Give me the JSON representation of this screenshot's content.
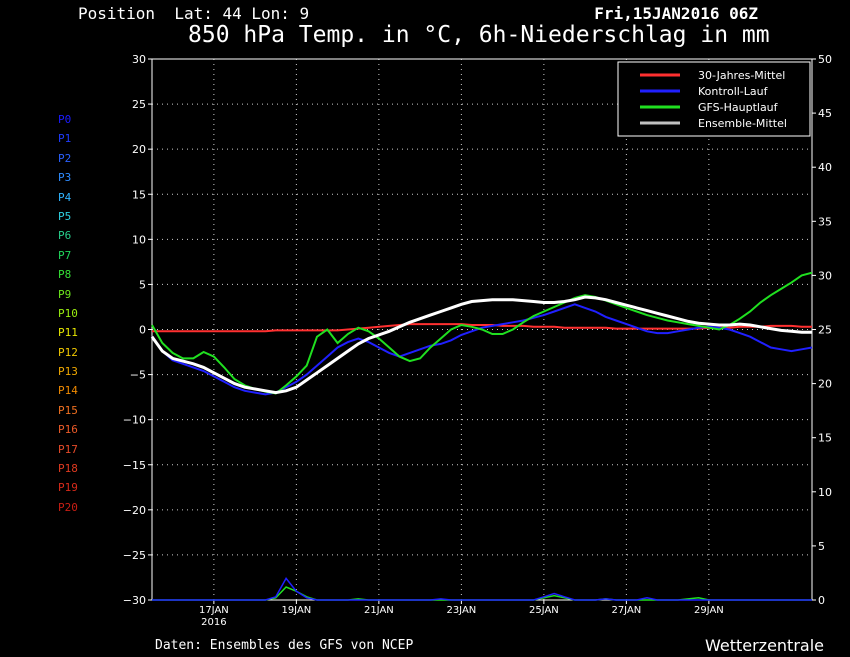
{
  "header": {
    "position": "Position  Lat: 44 Lon: 9",
    "datetime": "Fri,15JAN2016 06Z",
    "title": "850 hPa Temp. in °C, 6h-Niederschlag in mm"
  },
  "footer": {
    "source": "Daten: Ensembles des GFS von NCEP",
    "brand": "Wetterzentrale"
  },
  "members": [
    {
      "label": "P0",
      "color": "#1b1bff"
    },
    {
      "label": "P1",
      "color": "#1f3cff"
    },
    {
      "label": "P2",
      "color": "#2a60ff"
    },
    {
      "label": "P3",
      "color": "#2f8cff"
    },
    {
      "label": "P4",
      "color": "#2fb4ff"
    },
    {
      "label": "P5",
      "color": "#2ed0e0"
    },
    {
      "label": "P6",
      "color": "#27d08c"
    },
    {
      "label": "P7",
      "color": "#1fd65a"
    },
    {
      "label": "P8",
      "color": "#35e035"
    },
    {
      "label": "P9",
      "color": "#6ce81c"
    },
    {
      "label": "P10",
      "color": "#9aee10"
    },
    {
      "label": "P11",
      "color": "#e6e600"
    },
    {
      "label": "P12",
      "color": "#f0c800"
    },
    {
      "label": "P13",
      "color": "#f0a800"
    },
    {
      "label": "P14",
      "color": "#f08a00"
    },
    {
      "label": "P15",
      "color": "#f07020"
    },
    {
      "label": "P16",
      "color": "#ec5a28"
    },
    {
      "label": "P17",
      "color": "#e64a28"
    },
    {
      "label": "P18",
      "color": "#e03a20"
    },
    {
      "label": "P19",
      "color": "#d82a1a"
    },
    {
      "label": "P20",
      "color": "#c81e14"
    }
  ],
  "chart_data": {
    "type": "line",
    "x_ticks": [
      "17JAN",
      "19JAN",
      "21JAN",
      "23JAN",
      "25JAN",
      "27JAN",
      "29JAN"
    ],
    "x_sublabel": "2016",
    "y_left": {
      "min": -30,
      "max": 30,
      "step": 5,
      "unit": "°C"
    },
    "y_right": {
      "min": 0,
      "max": 50,
      "step": 5,
      "unit": "mm"
    },
    "x_steps": 64,
    "grid": true,
    "legend": {
      "placement": "top-right",
      "entries": [
        {
          "label": "30-Jahres-Mittel",
          "color": "#ff3030"
        },
        {
          "label": "Kontroll-Lauf",
          "color": "#2020ff"
        },
        {
          "label": "GFS-Hauptlauf",
          "color": "#20e020"
        },
        {
          "label": "Ensemble-Mittel",
          "color": "#c0c0c0"
        }
      ]
    },
    "series": [
      {
        "name": "30-Jahres-Mittel",
        "color": "#ff3030",
        "values": [
          -0.2,
          -0.2,
          -0.2,
          -0.2,
          -0.2,
          -0.2,
          -0.2,
          -0.2,
          -0.2,
          -0.2,
          -0.2,
          -0.2,
          -0.1,
          -0.1,
          -0.1,
          -0.1,
          -0.1,
          -0.1,
          -0.1,
          0,
          0.1,
          0.2,
          0.3,
          0.4,
          0.5,
          0.6,
          0.6,
          0.6,
          0.6,
          0.6,
          0.6,
          0.5,
          0.5,
          0.5,
          0.4,
          0.4,
          0.4,
          0.3,
          0.3,
          0.3,
          0.2,
          0.2,
          0.2,
          0.2,
          0.2,
          0.1,
          0.1,
          0.1,
          0.1,
          0.1,
          0.1,
          0.1,
          0.1,
          0.1,
          0.2,
          0.2,
          0.2,
          0.3,
          0.3,
          0.3,
          0.4,
          0.4,
          0.4,
          0.3,
          0.3
        ]
      },
      {
        "name": "Ensemble-Mittel",
        "color": "#ffffff",
        "values": [
          -0.8,
          -2.4,
          -3.2,
          -3.5,
          -3.8,
          -4.2,
          -4.8,
          -5.4,
          -6,
          -6.4,
          -6.6,
          -6.8,
          -7,
          -6.8,
          -6.4,
          -5.6,
          -4.8,
          -4,
          -3.2,
          -2.4,
          -1.6,
          -1,
          -0.6,
          -0.2,
          0.3,
          0.8,
          1.2,
          1.6,
          2,
          2.4,
          2.8,
          3.1,
          3.2,
          3.3,
          3.3,
          3.3,
          3.2,
          3.1,
          3,
          3,
          3.1,
          3.3,
          3.6,
          3.5,
          3.3,
          3,
          2.7,
          2.4,
          2.1,
          1.8,
          1.5,
          1.2,
          0.9,
          0.7,
          0.6,
          0.5,
          0.5,
          0.6,
          0.5,
          0.3,
          0.1,
          -0.1,
          -0.2,
          -0.3,
          -0.3
        ]
      },
      {
        "name": "Kontroll-Lauf",
        "color": "#2020ff",
        "values": [
          -0.8,
          -2.4,
          -3.4,
          -3.8,
          -4.2,
          -4.6,
          -5.2,
          -5.8,
          -6.4,
          -6.8,
          -7,
          -7.2,
          -7,
          -6.4,
          -5.8,
          -5,
          -4,
          -3,
          -2,
          -1.4,
          -1,
          -1.4,
          -2,
          -2.6,
          -3,
          -2.6,
          -2.2,
          -1.8,
          -1.6,
          -1.2,
          -0.6,
          -0.2,
          0.2,
          0.4,
          0.6,
          0.8,
          1,
          1.3,
          1.6,
          2,
          2.4,
          2.8,
          2.4,
          2,
          1.4,
          1,
          0.6,
          0.2,
          -0.2,
          -0.4,
          -0.4,
          -0.2,
          0,
          0.2,
          0.3,
          0.2,
          0,
          -0.4,
          -0.8,
          -1.4,
          -2,
          -2.2,
          -2.4,
          -2.2,
          -2
        ]
      },
      {
        "name": "GFS-Hauptlauf",
        "color": "#20e020",
        "values": [
          0.5,
          -1.5,
          -2.6,
          -3.2,
          -3.2,
          -2.5,
          -3,
          -4.2,
          -5.5,
          -6.2,
          -6.6,
          -6.9,
          -7.1,
          -6.2,
          -5.2,
          -4,
          -0.8,
          0,
          -1.5,
          -0.5,
          0.2,
          -0.2,
          -1,
          -2,
          -3,
          -3.5,
          -3.2,
          -2,
          -1,
          0,
          0.5,
          0.3,
          0,
          -0.5,
          -0.5,
          0,
          0.8,
          1.5,
          2,
          2.5,
          3,
          3.5,
          3.8,
          3.6,
          3.2,
          2.8,
          2.4,
          2,
          1.6,
          1.3,
          1,
          0.8,
          0.6,
          0.4,
          0.2,
          0,
          0.5,
          1.2,
          2,
          3,
          3.8,
          4.5,
          5.2,
          6,
          6.3
        ]
      }
    ],
    "precip_series": [
      {
        "name": "GFS-Hauptlauf",
        "color": "#20e020",
        "values": [
          0,
          0,
          0,
          0,
          0,
          0,
          0,
          0,
          0,
          0,
          0,
          0,
          0.2,
          1.2,
          0.8,
          0.3,
          0,
          0,
          0,
          0,
          0.1,
          0,
          0,
          0,
          0,
          0,
          0,
          0,
          0,
          0,
          0,
          0,
          0,
          0,
          0,
          0,
          0,
          0,
          0.2,
          0.4,
          0.2,
          0,
          0,
          0,
          0.1,
          0,
          0,
          0,
          0,
          0,
          0,
          0,
          0.1,
          0.2,
          0,
          0,
          0,
          0,
          0,
          0,
          0,
          0,
          0,
          0,
          0
        ]
      },
      {
        "name": "Kontroll-Lauf",
        "color": "#2020ff",
        "values": [
          0,
          0,
          0,
          0,
          0,
          0,
          0,
          0,
          0,
          0,
          0,
          0,
          0.3,
          2,
          0.8,
          0.2,
          0,
          0,
          0,
          0,
          0,
          0,
          0,
          0,
          0,
          0,
          0,
          0,
          0.1,
          0,
          0,
          0,
          0,
          0,
          0,
          0,
          0,
          0,
          0.3,
          0.6,
          0.3,
          0,
          0,
          0,
          0.1,
          0,
          0,
          0,
          0.2,
          0,
          0,
          0,
          0,
          0,
          0,
          0,
          0,
          0,
          0,
          0,
          0,
          0,
          0,
          0,
          0
        ]
      }
    ]
  }
}
